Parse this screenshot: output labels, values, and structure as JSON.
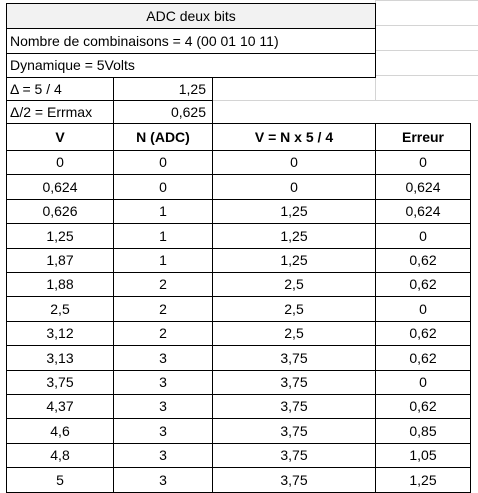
{
  "title": "ADC deux bits",
  "info": {
    "combinaisons": "Nombre de combinaisons = 4 (00 01 10 11)",
    "dynamique": "Dynamique = 5Volts"
  },
  "params": [
    {
      "label": "Δ = 5 / 4",
      "value": "1,25"
    },
    {
      "label": "Δ/2 = Errmax",
      "value": "0,625"
    }
  ],
  "table": {
    "headers": [
      "V",
      "N (ADC)",
      "V = N x 5 / 4",
      "Erreur"
    ],
    "rows": [
      [
        "0",
        "0",
        "0",
        "0"
      ],
      [
        "0,624",
        "0",
        "0",
        "0,624"
      ],
      [
        "0,626",
        "1",
        "1,25",
        "0,624"
      ],
      [
        "1,25",
        "1",
        "1,25",
        "0"
      ],
      [
        "1,87",
        "1",
        "1,25",
        "0,62"
      ],
      [
        "1,88",
        "2",
        "2,5",
        "0,62"
      ],
      [
        "2,5",
        "2",
        "2,5",
        "0"
      ],
      [
        "3,12",
        "2",
        "2,5",
        "0,62"
      ],
      [
        "3,13",
        "3",
        "3,75",
        "0,62"
      ],
      [
        "3,75",
        "3",
        "3,75",
        "0"
      ],
      [
        "4,37",
        "3",
        "3,75",
        "0,62"
      ],
      [
        "4,6",
        "3",
        "3,75",
        "0,85"
      ],
      [
        "4,8",
        "3",
        "3,75",
        "1,05"
      ],
      [
        "5",
        "3",
        "3,75",
        "1,25"
      ]
    ]
  }
}
